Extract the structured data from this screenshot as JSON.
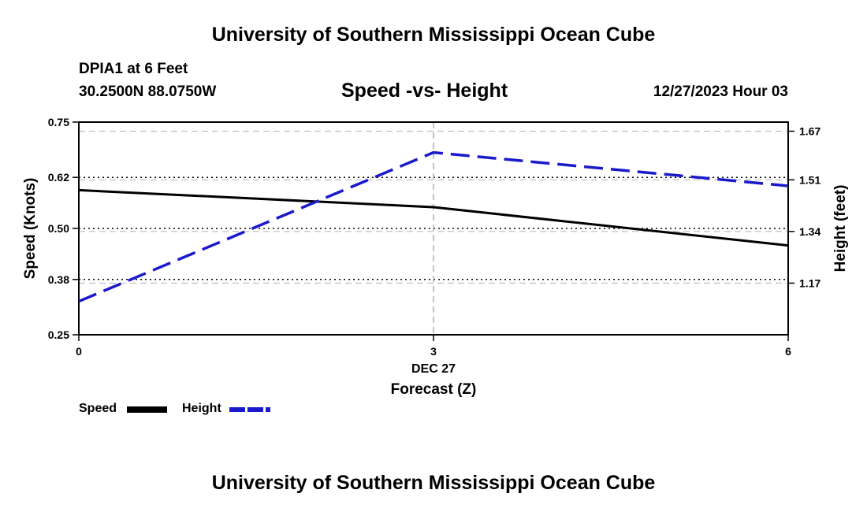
{
  "header": {
    "title": "University of Southern Mississippi Ocean Cube",
    "station": "DPIA1 at 6 Feet",
    "coords": "30.2500N  88.0750W",
    "chart_title": "Speed -vs- Height",
    "datetime": "12/27/2023 Hour 03"
  },
  "footer": {
    "title": "University of Southern Mississippi Ocean Cube"
  },
  "legend": {
    "speed_label": "Speed",
    "height_label": "Height"
  },
  "colors": {
    "speed": "#000000",
    "height": "#1a1acc",
    "grid": "#b0b0b0"
  },
  "chart_data": {
    "type": "line",
    "title": "Speed -vs- Height",
    "x": [
      0,
      3,
      6
    ],
    "x_tick_labels": [
      "0",
      "3",
      "6"
    ],
    "x_date_label": "DEC 27",
    "xlabel": "Forecast (Z)",
    "xlim": [
      0,
      6
    ],
    "y_left": {
      "label": "Speed (Knots)",
      "lim": [
        0.25,
        0.75
      ],
      "ticks": [
        0.25,
        0.38,
        0.5,
        0.62,
        0.75
      ],
      "tick_labels": [
        "0.25",
        "0.38",
        "0.50",
        "0.62",
        "0.75"
      ]
    },
    "y_right": {
      "label": "Height (feet)",
      "lim": [
        1.0,
        1.7
      ],
      "ticks": [
        1.17,
        1.34,
        1.51,
        1.67
      ],
      "tick_labels": [
        "1.17",
        "1.34",
        "1.51",
        "1.67"
      ]
    },
    "grid": true,
    "series": [
      {
        "name": "Speed",
        "axis": "left",
        "style": "solid",
        "values": [
          0.59,
          0.55,
          0.46
        ]
      },
      {
        "name": "Height",
        "axis": "right",
        "style": "dashed",
        "values": [
          1.11,
          1.6,
          1.49
        ]
      }
    ]
  }
}
